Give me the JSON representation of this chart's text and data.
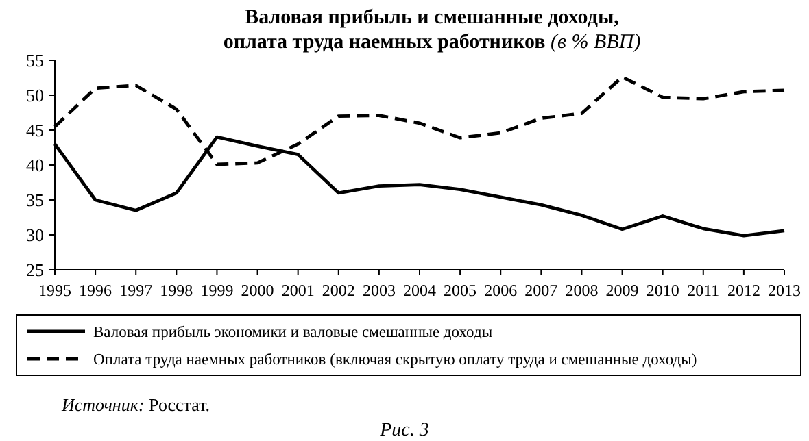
{
  "chart_data": {
    "type": "line",
    "title": "Валовая прибыль и смешанные доходы, оплата труда наемных работников (в % ВВП)",
    "x": [
      1995,
      1996,
      1997,
      1998,
      1999,
      2000,
      2001,
      2002,
      2003,
      2004,
      2005,
      2006,
      2007,
      2008,
      2009,
      2010,
      2011,
      2012,
      2013
    ],
    "xlim": [
      1995,
      2013
    ],
    "xticks": [
      1995,
      1996,
      1997,
      1998,
      1999,
      2000,
      2001,
      2002,
      2003,
      2004,
      2005,
      2006,
      2007,
      2008,
      2009,
      2010,
      2011,
      2012,
      2013
    ],
    "ylim": [
      25,
      55
    ],
    "yticks": [
      25,
      30,
      35,
      40,
      45,
      50,
      55
    ],
    "series": [
      {
        "name": "Валовая прибыль экономики  и  валовые смешанные доходы",
        "color": "#000000",
        "line_style": "solid",
        "values": [
          43,
          35,
          33.5,
          36,
          44,
          42.7,
          41.5,
          36,
          37,
          37.2,
          36.5,
          35.4,
          34.3,
          32.8,
          30.8,
          32.7,
          30.9,
          29.9,
          30.6
        ]
      },
      {
        "name": "Оплата труда наемных работников (включая скрытую оплату труда и смешанные доходы)",
        "color": "#000000",
        "line_style": "dashed",
        "values": [
          45.5,
          51,
          51.4,
          48,
          40.1,
          40.3,
          43,
          47,
          47.1,
          46,
          43.9,
          44.6,
          46.7,
          47.4,
          52.6,
          49.7,
          49.5,
          50.5,
          50.7
        ]
      }
    ],
    "grid": false,
    "legend": "bottom",
    "marker": "none",
    "annotations": [
      "Источник: Росстат.",
      "Рис. 3"
    ]
  }
}
